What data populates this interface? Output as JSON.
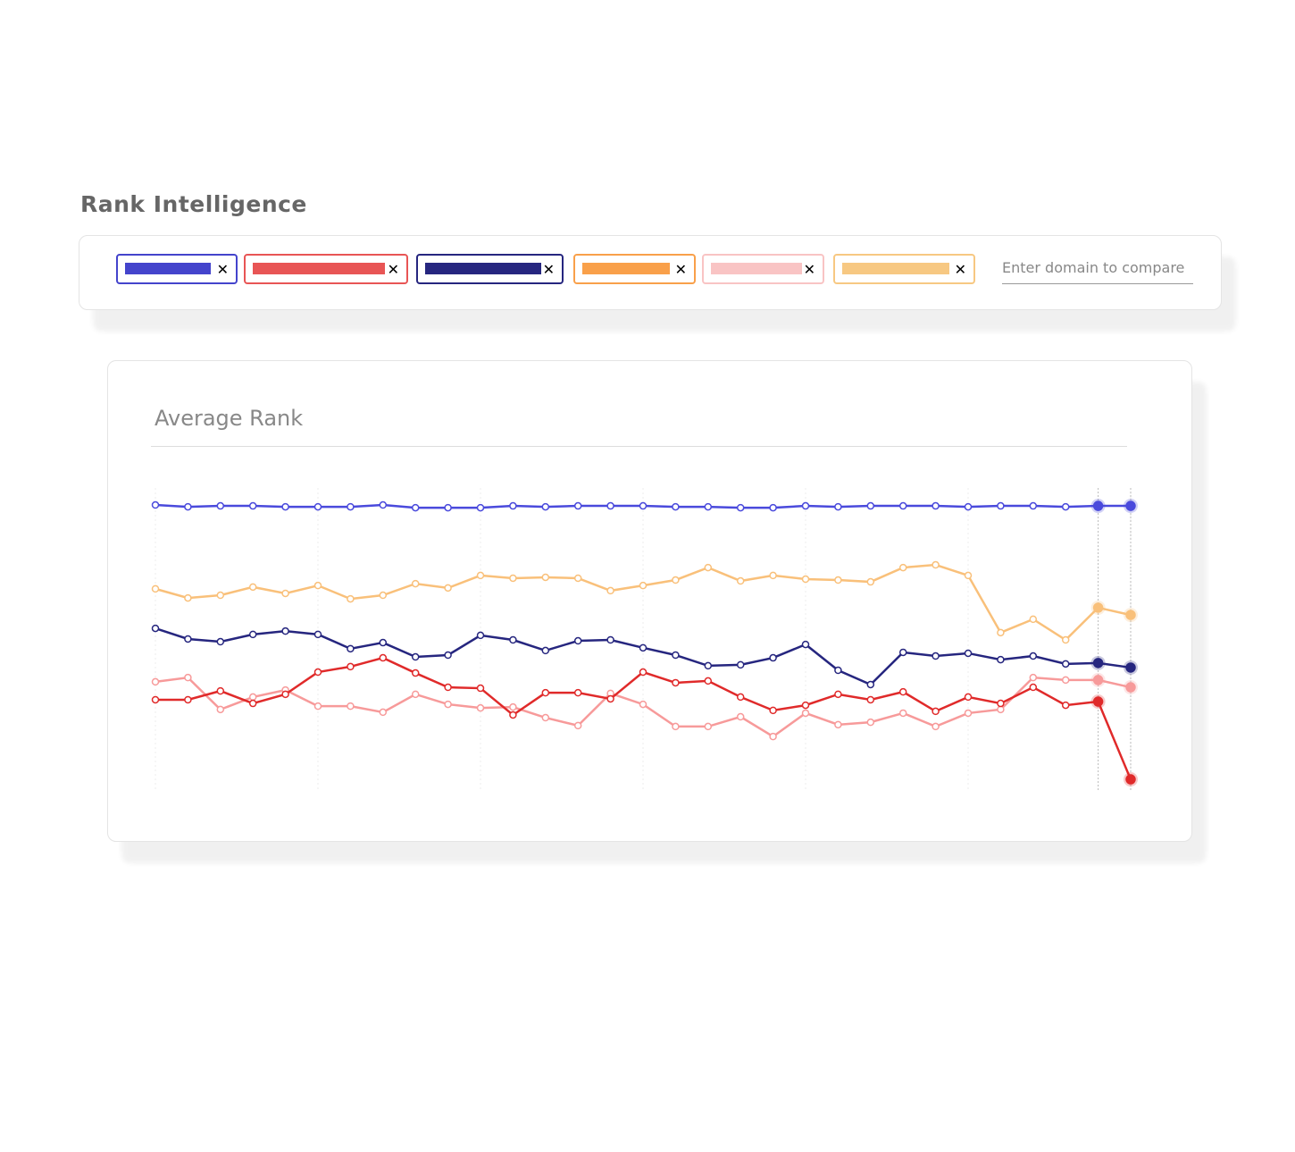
{
  "header": {
    "title": "Rank Intelligence"
  },
  "filters": {
    "chips": [
      {
        "color": "#4444cc"
      },
      {
        "color": "#e85555"
      },
      {
        "color": "#26267f"
      },
      {
        "color": "#f9a04a"
      },
      {
        "color": "#f9c4c4"
      },
      {
        "color": "#f7c882"
      }
    ],
    "placeholder": "Enter domain to compare"
  },
  "chart_data": {
    "type": "line",
    "title": "Average Rank",
    "categories": [
      null,
      null,
      null,
      null,
      null,
      null,
      null,
      null,
      null,
      null,
      null,
      null,
      null,
      null,
      null,
      null,
      null,
      null,
      null,
      null,
      null,
      null,
      null,
      null,
      null,
      null,
      null,
      null,
      null,
      null,
      null
    ],
    "ylim": [
      0,
      100
    ],
    "series": [
      {
        "color": "#f79a9a",
        "values": [
          36.2,
          37.6,
          27.1,
          31.2,
          33.5,
          28.2,
          28.2,
          26.2,
          32.1,
          28.8,
          27.6,
          27.9,
          24.4,
          21.8,
          32.4,
          28.8,
          21.5,
          21.5,
          24.7,
          18.2,
          25.9,
          22.1,
          22.9,
          25.9,
          21.5,
          25.9,
          27.1,
          37.6,
          36.8,
          36.8,
          34.4
        ]
      },
      {
        "color": "#e02a2a",
        "values": [
          30.3,
          30.3,
          33.2,
          29.1,
          32.1,
          39.4,
          41.2,
          44.1,
          39.1,
          34.4,
          34.1,
          25.3,
          32.6,
          32.6,
          30.6,
          39.4,
          35.9,
          36.5,
          31.2,
          26.8,
          28.5,
          32.1,
          30.3,
          32.9,
          26.5,
          31.2,
          29.1,
          34.4,
          28.5,
          29.7,
          4.1
        ]
      },
      {
        "color": "#26267f",
        "values": [
          53.8,
          50.3,
          49.4,
          51.8,
          52.9,
          51.8,
          47.1,
          49.1,
          44.4,
          45.0,
          51.5,
          50.0,
          46.5,
          49.7,
          50.0,
          47.4,
          45.0,
          41.5,
          41.8,
          44.1,
          48.5,
          40.0,
          35.3,
          45.9,
          44.7,
          45.6,
          43.5,
          44.7,
          42.1,
          42.4,
          40.9
        ]
      },
      {
        "color": "#f9c07a",
        "values": [
          66.8,
          63.8,
          64.7,
          67.4,
          65.3,
          67.9,
          63.5,
          64.7,
          68.5,
          67.1,
          71.2,
          70.3,
          70.6,
          70.3,
          66.2,
          67.9,
          69.7,
          73.8,
          69.4,
          71.2,
          70.0,
          69.7,
          69.1,
          73.8,
          74.7,
          71.2,
          52.4,
          56.8,
          50.0,
          60.6,
          58.2
        ]
      },
      {
        "color": "#4a4adc",
        "values": [
          94.4,
          93.8,
          94.1,
          94.1,
          93.8,
          93.8,
          93.8,
          94.4,
          93.5,
          93.5,
          93.5,
          94.1,
          93.8,
          94.1,
          94.1,
          94.1,
          93.8,
          93.8,
          93.5,
          93.5,
          94.1,
          93.8,
          94.1,
          94.1,
          94.1,
          93.8,
          94.1,
          94.1,
          93.8,
          94.1,
          94.1
        ]
      }
    ]
  }
}
